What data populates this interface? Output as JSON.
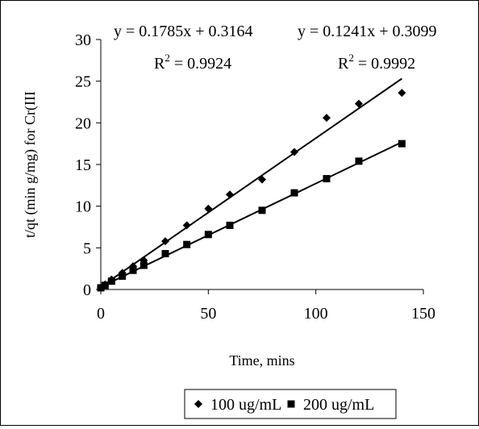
{
  "chart_data": {
    "type": "scatter",
    "title": "",
    "xlabel": "Time, mins",
    "ylabel": "t/qt (min g/mg) for Cr(III",
    "xlim": [
      0,
      150
    ],
    "ylim": [
      0,
      30
    ],
    "xticks": [
      0,
      50,
      100,
      150
    ],
    "yticks": [
      0,
      5,
      10,
      15,
      20,
      25,
      30
    ],
    "grid": false,
    "legend_position": "bottom",
    "series": [
      {
        "name": "100 ug/mL",
        "marker": "diamond",
        "color": "#000000",
        "x": [
          0,
          2,
          5,
          10,
          15,
          20,
          30,
          40,
          50,
          60,
          75,
          90,
          105,
          120,
          140
        ],
        "y": [
          0.2,
          0.6,
          1.2,
          2.0,
          2.8,
          3.5,
          5.8,
          7.7,
          9.7,
          11.4,
          13.2,
          16.5,
          20.6,
          22.3,
          23.6
        ],
        "trendline": {
          "slope": 0.1785,
          "intercept": 0.3164,
          "x_range": [
            0,
            140
          ]
        },
        "equation": "y = 0.1785x + 0.3164",
        "r2_value": "0.9924"
      },
      {
        "name": "200 ug/mL",
        "marker": "square",
        "color": "#000000",
        "x": [
          0,
          2,
          5,
          10,
          15,
          20,
          30,
          40,
          50,
          60,
          75,
          90,
          105,
          120,
          140
        ],
        "y": [
          0.2,
          0.5,
          1.0,
          1.6,
          2.3,
          2.9,
          4.3,
          5.4,
          6.6,
          7.7,
          9.5,
          11.6,
          13.3,
          15.4,
          17.5
        ],
        "trendline": {
          "slope": 0.1241,
          "intercept": 0.3099,
          "x_range": [
            0,
            140
          ]
        },
        "equation": "y = 0.1241x + 0.3099",
        "r2_value": "0.9992"
      }
    ],
    "r2_prefix": "R",
    "r2_superscript": "2",
    "r2_suffix": " = "
  }
}
